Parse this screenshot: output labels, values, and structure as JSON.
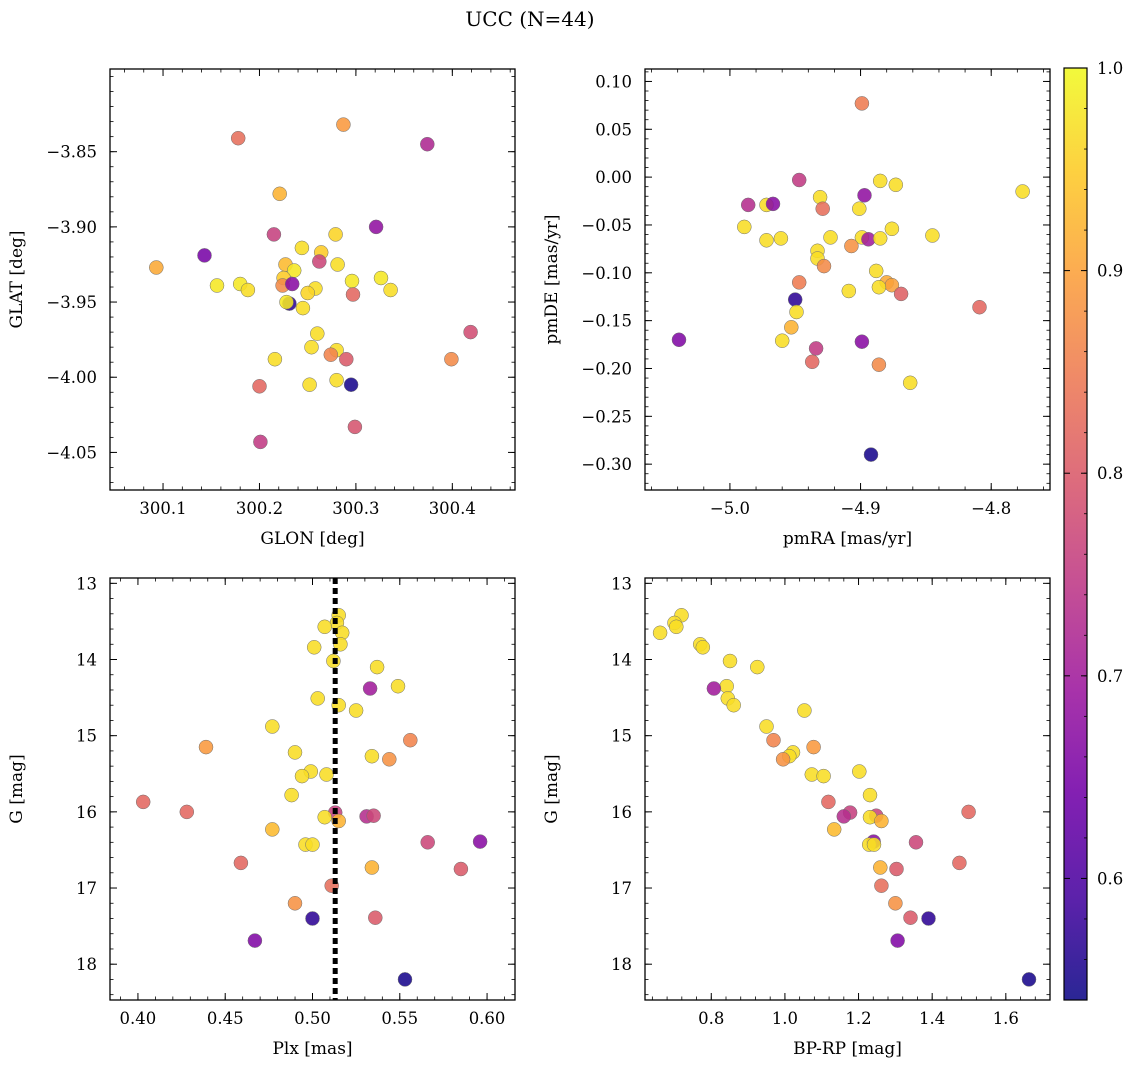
{
  "suptitle": "UCC (N=44)",
  "colors": {
    "plasma": [
      "#0d0887",
      "#46039f",
      "#7201a8",
      "#9c179e",
      "#bd3786",
      "#d8576b",
      "#ed7953",
      "#fb9f3a",
      "#fdca26",
      "#f0f921"
    ],
    "marker_edge": "#6f6f6f",
    "median_line": "#000000"
  },
  "colorbar": {
    "range": [
      0.54,
      1.0
    ],
    "ticks": [
      "0.6",
      "0.7",
      "0.8",
      "0.9",
      "1.0"
    ],
    "tick_values": [
      0.6,
      0.7,
      0.8,
      0.9,
      1.0
    ]
  },
  "chart_data": [
    {
      "type": "scatter",
      "name": "panel-glon-glat",
      "xlabel": "GLON [deg]",
      "ylabel": "GLAT [deg]",
      "xlim": [
        300.045,
        300.465
      ],
      "ylim": [
        -4.075,
        -3.795
      ],
      "xticks": [
        "300.1",
        "300.2",
        "300.3",
        "300.4"
      ],
      "xtick_values": [
        300.1,
        300.2,
        300.3,
        300.4
      ],
      "yticks": [
        "−4.05",
        "−4.00",
        "−3.95",
        "−3.90",
        "−3.85"
      ],
      "ytick_values": [
        -4.05,
        -4.0,
        -3.95,
        -3.9,
        -3.85
      ],
      "invert_y": false,
      "points": [
        {
          "x": 300.178,
          "y": -3.841,
          "c": 0.83
        },
        {
          "x": 300.287,
          "y": -3.832,
          "c": 0.89
        },
        {
          "x": 300.374,
          "y": -3.845,
          "c": 0.72
        },
        {
          "x": 300.221,
          "y": -3.878,
          "c": 0.92
        },
        {
          "x": 300.215,
          "y": -3.905,
          "c": 0.76
        },
        {
          "x": 300.279,
          "y": -3.905,
          "c": 0.96
        },
        {
          "x": 300.321,
          "y": -3.9,
          "c": 0.68
        },
        {
          "x": 300.143,
          "y": -3.919,
          "c": 0.65
        },
        {
          "x": 300.244,
          "y": -3.914,
          "c": 0.97
        },
        {
          "x": 300.264,
          "y": -3.917,
          "c": 0.95
        },
        {
          "x": 300.093,
          "y": -3.927,
          "c": 0.91
        },
        {
          "x": 300.227,
          "y": -3.925,
          "c": 0.93
        },
        {
          "x": 300.262,
          "y": -3.923,
          "c": 0.77
        },
        {
          "x": 300.281,
          "y": -3.925,
          "c": 0.97
        },
        {
          "x": 300.236,
          "y": -3.929,
          "c": 0.98
        },
        {
          "x": 300.225,
          "y": -3.934,
          "c": 0.95
        },
        {
          "x": 300.296,
          "y": -3.936,
          "c": 0.98
        },
        {
          "x": 300.326,
          "y": -3.934,
          "c": 0.98
        },
        {
          "x": 300.156,
          "y": -3.939,
          "c": 0.98
        },
        {
          "x": 300.18,
          "y": -3.938,
          "c": 0.98
        },
        {
          "x": 300.224,
          "y": -3.939,
          "c": 0.87
        },
        {
          "x": 300.234,
          "y": -3.938,
          "c": 0.67
        },
        {
          "x": 300.188,
          "y": -3.942,
          "c": 0.97
        },
        {
          "x": 300.258,
          "y": -3.941,
          "c": 0.97
        },
        {
          "x": 300.25,
          "y": -3.944,
          "c": 0.96
        },
        {
          "x": 300.336,
          "y": -3.942,
          "c": 0.97
        },
        {
          "x": 300.297,
          "y": -3.945,
          "c": 0.82
        },
        {
          "x": 300.231,
          "y": -3.951,
          "c": 0.57
        },
        {
          "x": 300.228,
          "y": -3.95,
          "c": 0.98
        },
        {
          "x": 300.245,
          "y": -3.954,
          "c": 0.97
        },
        {
          "x": 300.26,
          "y": -3.971,
          "c": 0.97
        },
        {
          "x": 300.419,
          "y": -3.97,
          "c": 0.78
        },
        {
          "x": 300.254,
          "y": -3.98,
          "c": 0.97
        },
        {
          "x": 300.28,
          "y": -3.982,
          "c": 0.97
        },
        {
          "x": 300.274,
          "y": -3.985,
          "c": 0.86
        },
        {
          "x": 300.29,
          "y": -3.988,
          "c": 0.8
        },
        {
          "x": 300.399,
          "y": -3.988,
          "c": 0.87
        },
        {
          "x": 300.216,
          "y": -3.988,
          "c": 0.97
        },
        {
          "x": 300.2,
          "y": -4.006,
          "c": 0.82
        },
        {
          "x": 300.252,
          "y": -4.005,
          "c": 0.97
        },
        {
          "x": 300.28,
          "y": -4.002,
          "c": 0.97
        },
        {
          "x": 300.295,
          "y": -4.005,
          "c": 0.55
        },
        {
          "x": 300.299,
          "y": -4.033,
          "c": 0.79
        },
        {
          "x": 300.201,
          "y": -4.043,
          "c": 0.75
        }
      ]
    },
    {
      "type": "scatter",
      "name": "panel-pmra-pmde",
      "xlabel": "pmRA [mas/yr]",
      "ylabel": "pmDE [mas/yr]",
      "xlim": [
        -5.065,
        -4.755
      ],
      "ylim": [
        -0.327,
        0.113
      ],
      "xticks": [
        "−5.0",
        "−4.9",
        "−4.8"
      ],
      "xtick_values": [
        -5.0,
        -4.9,
        -4.8
      ],
      "yticks": [
        "−0.30",
        "−0.25",
        "−0.20",
        "−0.15",
        "−0.10",
        "−0.05",
        "0.00",
        "0.05",
        "0.10"
      ],
      "ytick_values": [
        -0.3,
        -0.25,
        -0.2,
        -0.15,
        -0.1,
        -0.05,
        0.0,
        0.05,
        0.1
      ],
      "invert_y": false,
      "points": [
        {
          "x": -4.899,
          "y": 0.077,
          "c": 0.85
        },
        {
          "x": -4.947,
          "y": -0.003,
          "c": 0.75
        },
        {
          "x": -4.885,
          "y": -0.004,
          "c": 0.97
        },
        {
          "x": -4.873,
          "y": -0.008,
          "c": 0.97
        },
        {
          "x": -4.776,
          "y": -0.015,
          "c": 0.97
        },
        {
          "x": -4.897,
          "y": -0.019,
          "c": 0.68
        },
        {
          "x": -4.931,
          "y": -0.021,
          "c": 0.97
        },
        {
          "x": -4.986,
          "y": -0.029,
          "c": 0.73
        },
        {
          "x": -4.972,
          "y": -0.029,
          "c": 0.97
        },
        {
          "x": -4.967,
          "y": -0.028,
          "c": 0.67
        },
        {
          "x": -4.929,
          "y": -0.033,
          "c": 0.83
        },
        {
          "x": -4.901,
          "y": -0.033,
          "c": 0.97
        },
        {
          "x": -4.989,
          "y": -0.052,
          "c": 0.97
        },
        {
          "x": -4.876,
          "y": -0.054,
          "c": 0.97
        },
        {
          "x": -4.923,
          "y": -0.063,
          "c": 0.97
        },
        {
          "x": -4.899,
          "y": -0.063,
          "c": 0.97
        },
        {
          "x": -4.894,
          "y": -0.065,
          "c": 0.7
        },
        {
          "x": -4.885,
          "y": -0.064,
          "c": 0.97
        },
        {
          "x": -4.845,
          "y": -0.061,
          "c": 0.97
        },
        {
          "x": -4.972,
          "y": -0.066,
          "c": 0.97
        },
        {
          "x": -4.961,
          "y": -0.064,
          "c": 0.97
        },
        {
          "x": -4.907,
          "y": -0.072,
          "c": 0.88
        },
        {
          "x": -4.933,
          "y": -0.077,
          "c": 0.97
        },
        {
          "x": -4.933,
          "y": -0.085,
          "c": 0.97
        },
        {
          "x": -4.928,
          "y": -0.093,
          "c": 0.87
        },
        {
          "x": -4.888,
          "y": -0.098,
          "c": 0.97
        },
        {
          "x": -4.947,
          "y": -0.11,
          "c": 0.85
        },
        {
          "x": -4.88,
          "y": -0.11,
          "c": 0.91
        },
        {
          "x": -4.876,
          "y": -0.113,
          "c": 0.9
        },
        {
          "x": -4.886,
          "y": -0.115,
          "c": 0.97
        },
        {
          "x": -4.909,
          "y": -0.119,
          "c": 0.97
        },
        {
          "x": -4.869,
          "y": -0.122,
          "c": 0.81
        },
        {
          "x": -4.95,
          "y": -0.128,
          "c": 0.57
        },
        {
          "x": -4.809,
          "y": -0.136,
          "c": 0.82
        },
        {
          "x": -4.949,
          "y": -0.141,
          "c": 0.97
        },
        {
          "x": -4.953,
          "y": -0.157,
          "c": 0.92
        },
        {
          "x": -5.039,
          "y": -0.17,
          "c": 0.66
        },
        {
          "x": -4.96,
          "y": -0.171,
          "c": 0.97
        },
        {
          "x": -4.899,
          "y": -0.172,
          "c": 0.67
        },
        {
          "x": -4.934,
          "y": -0.179,
          "c": 0.75
        },
        {
          "x": -4.937,
          "y": -0.193,
          "c": 0.82
        },
        {
          "x": -4.886,
          "y": -0.196,
          "c": 0.87
        },
        {
          "x": -4.862,
          "y": -0.215,
          "c": 0.97
        },
        {
          "x": -4.892,
          "y": -0.29,
          "c": 0.55
        }
      ]
    },
    {
      "type": "scatter",
      "name": "panel-plx-g",
      "xlabel": "Plx [mas]",
      "ylabel": "G [mag]",
      "xlim": [
        0.384,
        0.616
      ],
      "ylim": [
        12.93,
        18.47
      ],
      "xticks": [
        "0.40",
        "0.45",
        "0.50",
        "0.55",
        "0.60"
      ],
      "xtick_values": [
        0.4,
        0.45,
        0.5,
        0.55,
        0.6
      ],
      "yticks": [
        "13",
        "14",
        "15",
        "16",
        "17",
        "18"
      ],
      "ytick_values": [
        13,
        14,
        15,
        16,
        17,
        18
      ],
      "invert_y": true,
      "vline": 0.513,
      "points": [
        {
          "x": 0.515,
          "y": 13.42,
          "c": 0.97
        },
        {
          "x": 0.514,
          "y": 13.52,
          "c": 0.97
        },
        {
          "x": 0.507,
          "y": 13.57,
          "c": 0.97
        },
        {
          "x": 0.517,
          "y": 13.65,
          "c": 0.97
        },
        {
          "x": 0.516,
          "y": 13.8,
          "c": 0.97
        },
        {
          "x": 0.501,
          "y": 13.84,
          "c": 0.97
        },
        {
          "x": 0.512,
          "y": 14.02,
          "c": 0.97
        },
        {
          "x": 0.537,
          "y": 14.1,
          "c": 0.97
        },
        {
          "x": 0.549,
          "y": 14.35,
          "c": 0.97
        },
        {
          "x": 0.533,
          "y": 14.38,
          "c": 0.7
        },
        {
          "x": 0.503,
          "y": 14.51,
          "c": 0.97
        },
        {
          "x": 0.515,
          "y": 14.6,
          "c": 0.97
        },
        {
          "x": 0.525,
          "y": 14.67,
          "c": 0.97
        },
        {
          "x": 0.477,
          "y": 14.88,
          "c": 0.97
        },
        {
          "x": 0.556,
          "y": 15.06,
          "c": 0.86
        },
        {
          "x": 0.439,
          "y": 15.15,
          "c": 0.89
        },
        {
          "x": 0.49,
          "y": 15.22,
          "c": 0.97
        },
        {
          "x": 0.534,
          "y": 15.27,
          "c": 0.97
        },
        {
          "x": 0.544,
          "y": 15.31,
          "c": 0.88
        },
        {
          "x": 0.499,
          "y": 15.47,
          "c": 0.97
        },
        {
          "x": 0.508,
          "y": 15.51,
          "c": 0.97
        },
        {
          "x": 0.494,
          "y": 15.53,
          "c": 0.97
        },
        {
          "x": 0.488,
          "y": 15.78,
          "c": 0.97
        },
        {
          "x": 0.403,
          "y": 15.87,
          "c": 0.82
        },
        {
          "x": 0.428,
          "y": 16.0,
          "c": 0.82
        },
        {
          "x": 0.513,
          "y": 16.01,
          "c": 0.76
        },
        {
          "x": 0.531,
          "y": 16.06,
          "c": 0.73
        },
        {
          "x": 0.535,
          "y": 16.05,
          "c": 0.77
        },
        {
          "x": 0.507,
          "y": 16.07,
          "c": 0.97
        },
        {
          "x": 0.515,
          "y": 16.12,
          "c": 0.92
        },
        {
          "x": 0.477,
          "y": 16.23,
          "c": 0.93
        },
        {
          "x": 0.566,
          "y": 16.4,
          "c": 0.77
        },
        {
          "x": 0.596,
          "y": 16.39,
          "c": 0.67
        },
        {
          "x": 0.496,
          "y": 16.43,
          "c": 0.97
        },
        {
          "x": 0.5,
          "y": 16.43,
          "c": 0.97
        },
        {
          "x": 0.459,
          "y": 16.67,
          "c": 0.82
        },
        {
          "x": 0.534,
          "y": 16.73,
          "c": 0.92
        },
        {
          "x": 0.585,
          "y": 16.75,
          "c": 0.8
        },
        {
          "x": 0.511,
          "y": 16.97,
          "c": 0.83
        },
        {
          "x": 0.49,
          "y": 17.2,
          "c": 0.88
        },
        {
          "x": 0.5,
          "y": 17.4,
          "c": 0.57
        },
        {
          "x": 0.536,
          "y": 17.39,
          "c": 0.8
        },
        {
          "x": 0.467,
          "y": 17.69,
          "c": 0.66
        },
        {
          "x": 0.553,
          "y": 18.2,
          "c": 0.55
        }
      ]
    },
    {
      "type": "scatter",
      "name": "panel-bprp-g",
      "xlabel": "BP-RP [mag]",
      "ylabel": "G [mag]",
      "xlim": [
        0.62,
        1.72
      ],
      "ylim": [
        12.93,
        18.47
      ],
      "xticks": [
        "0.8",
        "1.0",
        "1.2",
        "1.4",
        "1.6"
      ],
      "xtick_values": [
        0.8,
        1.0,
        1.2,
        1.4,
        1.6
      ],
      "yticks": [
        "13",
        "14",
        "15",
        "16",
        "17",
        "18"
      ],
      "ytick_values": [
        13,
        14,
        15,
        16,
        17,
        18
      ],
      "invert_y": true,
      "points": [
        {
          "x": 0.719,
          "y": 13.42,
          "c": 0.97
        },
        {
          "x": 0.7,
          "y": 13.52,
          "c": 0.97
        },
        {
          "x": 0.705,
          "y": 13.57,
          "c": 0.97
        },
        {
          "x": 0.661,
          "y": 13.65,
          "c": 0.97
        },
        {
          "x": 0.77,
          "y": 13.8,
          "c": 0.97
        },
        {
          "x": 0.777,
          "y": 13.84,
          "c": 0.97
        },
        {
          "x": 0.851,
          "y": 14.02,
          "c": 0.97
        },
        {
          "x": 0.925,
          "y": 14.1,
          "c": 0.97
        },
        {
          "x": 0.842,
          "y": 14.35,
          "c": 0.97
        },
        {
          "x": 0.807,
          "y": 14.38,
          "c": 0.7
        },
        {
          "x": 0.845,
          "y": 14.51,
          "c": 0.97
        },
        {
          "x": 0.861,
          "y": 14.6,
          "c": 0.97
        },
        {
          "x": 1.053,
          "y": 14.67,
          "c": 0.97
        },
        {
          "x": 0.95,
          "y": 14.88,
          "c": 0.97
        },
        {
          "x": 0.969,
          "y": 15.06,
          "c": 0.86
        },
        {
          "x": 1.078,
          "y": 15.15,
          "c": 0.89
        },
        {
          "x": 1.022,
          "y": 15.22,
          "c": 0.97
        },
        {
          "x": 1.012,
          "y": 15.27,
          "c": 0.97
        },
        {
          "x": 0.995,
          "y": 15.31,
          "c": 0.88
        },
        {
          "x": 1.202,
          "y": 15.47,
          "c": 0.97
        },
        {
          "x": 1.073,
          "y": 15.51,
          "c": 0.97
        },
        {
          "x": 1.105,
          "y": 15.53,
          "c": 0.97
        },
        {
          "x": 1.231,
          "y": 15.78,
          "c": 0.97
        },
        {
          "x": 1.118,
          "y": 15.87,
          "c": 0.82
        },
        {
          "x": 1.499,
          "y": 16.0,
          "c": 0.82
        },
        {
          "x": 1.177,
          "y": 16.01,
          "c": 0.76
        },
        {
          "x": 1.16,
          "y": 16.06,
          "c": 0.73
        },
        {
          "x": 1.248,
          "y": 16.05,
          "c": 0.77
        },
        {
          "x": 1.231,
          "y": 16.07,
          "c": 0.97
        },
        {
          "x": 1.262,
          "y": 16.12,
          "c": 0.92
        },
        {
          "x": 1.134,
          "y": 16.23,
          "c": 0.93
        },
        {
          "x": 1.356,
          "y": 16.4,
          "c": 0.77
        },
        {
          "x": 1.241,
          "y": 16.39,
          "c": 0.67
        },
        {
          "x": 1.229,
          "y": 16.43,
          "c": 0.97
        },
        {
          "x": 1.242,
          "y": 16.43,
          "c": 0.97
        },
        {
          "x": 1.474,
          "y": 16.67,
          "c": 0.82
        },
        {
          "x": 1.259,
          "y": 16.73,
          "c": 0.92
        },
        {
          "x": 1.303,
          "y": 16.75,
          "c": 0.8
        },
        {
          "x": 1.262,
          "y": 16.97,
          "c": 0.83
        },
        {
          "x": 1.3,
          "y": 17.2,
          "c": 0.88
        },
        {
          "x": 1.39,
          "y": 17.4,
          "c": 0.57
        },
        {
          "x": 1.341,
          "y": 17.39,
          "c": 0.8
        },
        {
          "x": 1.306,
          "y": 17.69,
          "c": 0.66
        },
        {
          "x": 1.663,
          "y": 18.2,
          "c": 0.55
        }
      ]
    }
  ]
}
